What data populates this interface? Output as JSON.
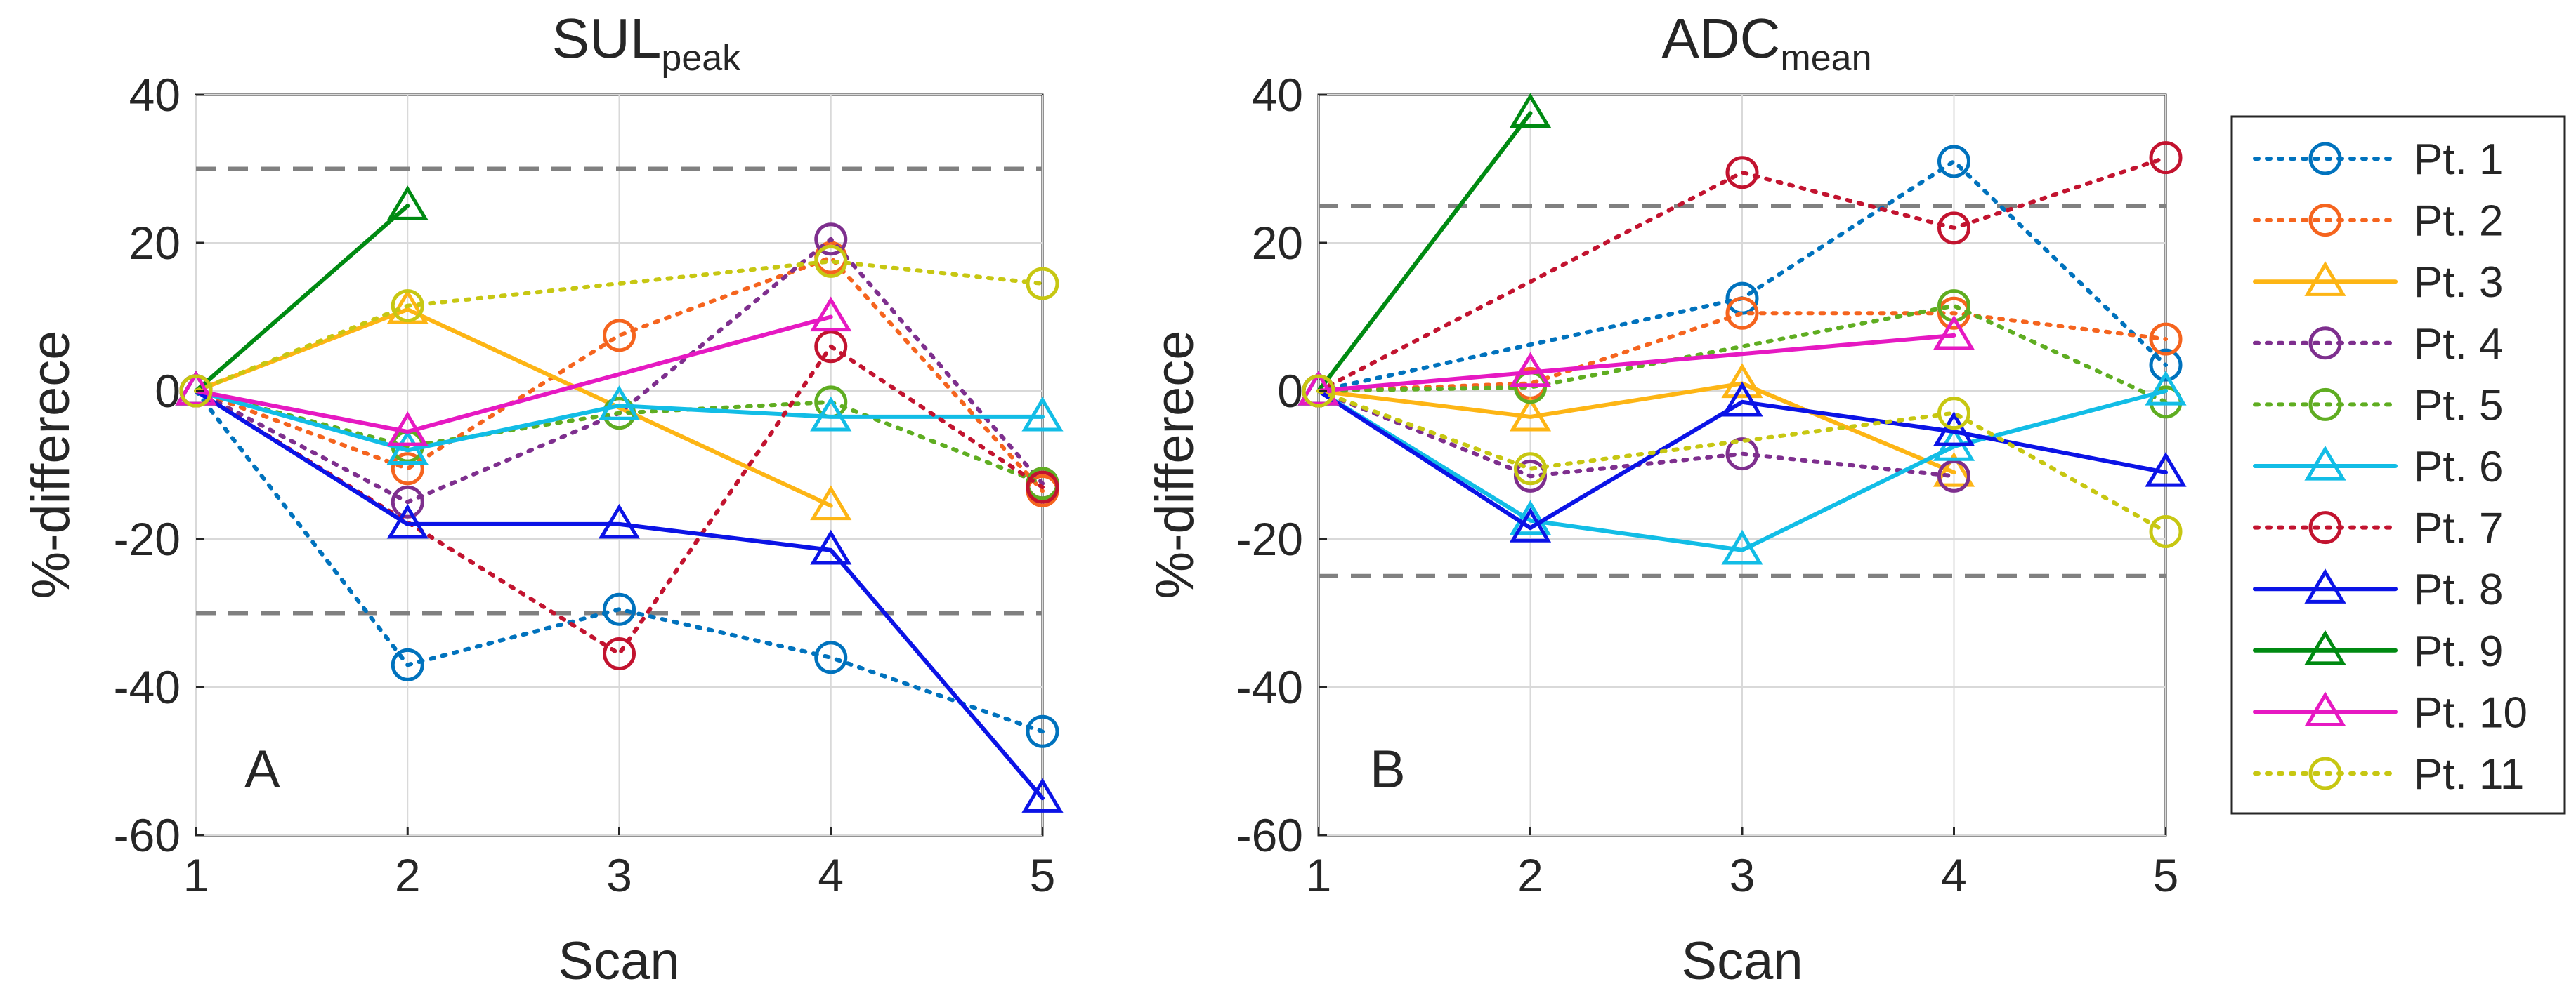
{
  "chart_data": [
    {
      "type": "line",
      "title": "SUL",
      "title_subscript": "peak",
      "panel_label": "A",
      "xlabel": "Scan",
      "ylabel": "%-differece",
      "x": [
        1,
        2,
        3,
        4,
        5
      ],
      "xlim": [
        1,
        5
      ],
      "ylim": [
        -60,
        40
      ],
      "xticks": [
        "1",
        "2",
        "3",
        "4",
        "5"
      ],
      "yticks": [
        "-60",
        "-40",
        "-20",
        "0",
        "20",
        "40"
      ],
      "ytick_values": [
        -60,
        -40,
        -20,
        0,
        20,
        40
      ],
      "grid": true,
      "reference_lines": [
        30,
        -30
      ],
      "series": [
        {
          "name": "Pt. 1",
          "values": [
            0,
            -37,
            -29.5,
            -36,
            -46
          ]
        },
        {
          "name": "Pt. 2",
          "values": [
            0,
            -10.5,
            7.5,
            18,
            -13.5
          ]
        },
        {
          "name": "Pt. 3",
          "values": [
            0,
            11,
            null,
            -15.5,
            null
          ]
        },
        {
          "name": "Pt. 4",
          "values": [
            0,
            -15,
            -3,
            20.5,
            -12.5
          ]
        },
        {
          "name": "Pt. 5",
          "values": [
            0,
            -7.5,
            -3,
            -1.5,
            -12.5
          ]
        },
        {
          "name": "Pt. 6",
          "values": [
            0,
            -8,
            -2,
            -3.5,
            -3.5
          ]
        },
        {
          "name": "Pt. 7",
          "values": [
            0,
            null,
            -35.5,
            6,
            -13
          ]
        },
        {
          "name": "Pt. 8",
          "values": [
            0,
            -18,
            -18,
            -21.5,
            -55
          ]
        },
        {
          "name": "Pt. 9",
          "values": [
            0,
            25,
            null,
            null,
            null
          ]
        },
        {
          "name": "Pt. 10",
          "values": [
            0,
            -5.5,
            null,
            10,
            null
          ]
        },
        {
          "name": "Pt. 11",
          "values": [
            0,
            11.5,
            null,
            17.5,
            14.5
          ]
        }
      ]
    },
    {
      "type": "line",
      "title": "ADC",
      "title_subscript": "mean",
      "panel_label": "B",
      "xlabel": "Scan",
      "ylabel": "%-differece",
      "x": [
        1,
        2,
        3,
        4,
        5
      ],
      "xlim": [
        1,
        5
      ],
      "ylim": [
        -60,
        40
      ],
      "xticks": [
        "1",
        "2",
        "3",
        "4",
        "5"
      ],
      "yticks": [
        "-60",
        "-40",
        "-20",
        "0",
        "20",
        "40"
      ],
      "ytick_values": [
        -60,
        -40,
        -20,
        0,
        20,
        40
      ],
      "grid": true,
      "reference_lines": [
        25,
        -25
      ],
      "series": [
        {
          "name": "Pt. 1",
          "values": [
            0,
            null,
            12.5,
            31,
            3.5
          ]
        },
        {
          "name": "Pt. 2",
          "values": [
            0,
            1,
            10.5,
            10.5,
            7
          ]
        },
        {
          "name": "Pt. 3",
          "values": [
            0,
            -3.5,
            1,
            -11,
            null
          ]
        },
        {
          "name": "Pt. 4",
          "values": [
            0,
            -11.5,
            -8.5,
            -11.5,
            null
          ]
        },
        {
          "name": "Pt. 5",
          "values": [
            0,
            0.5,
            null,
            11.5,
            -1.5
          ]
        },
        {
          "name": "Pt. 6",
          "values": [
            0,
            -17.5,
            -21.5,
            -7.5,
            0
          ]
        },
        {
          "name": "Pt. 7",
          "values": [
            0,
            null,
            29.5,
            22,
            31.5
          ]
        },
        {
          "name": "Pt. 8",
          "values": [
            0,
            -18.5,
            -1.5,
            -5.5,
            -11
          ]
        },
        {
          "name": "Pt. 9",
          "values": [
            0,
            37.5,
            null,
            null,
            null
          ]
        },
        {
          "name": "Pt. 10",
          "values": [
            0,
            2.5,
            null,
            7.5,
            null
          ]
        },
        {
          "name": "Pt. 11",
          "values": [
            0,
            -10.5,
            null,
            -3,
            -19
          ]
        }
      ]
    }
  ],
  "legend": {
    "placement": "right",
    "entries": [
      {
        "label": "Pt. 1",
        "color": "#0072bd",
        "marker": "circle",
        "line": "dotted"
      },
      {
        "label": "Pt. 2",
        "color": "#f5641e",
        "marker": "circle",
        "line": "dotted"
      },
      {
        "label": "Pt. 3",
        "color": "#fdb515",
        "marker": "triangle",
        "line": "solid"
      },
      {
        "label": "Pt. 4",
        "color": "#7e2f8e",
        "marker": "circle",
        "line": "dotted"
      },
      {
        "label": "Pt. 5",
        "color": "#5fad21",
        "marker": "circle",
        "line": "dotted"
      },
      {
        "label": "Pt. 6",
        "color": "#12bde6",
        "marker": "triangle",
        "line": "solid"
      },
      {
        "label": "Pt. 7",
        "color": "#c2132f",
        "marker": "circle",
        "line": "dotted"
      },
      {
        "label": "Pt. 8",
        "color": "#0b13e6",
        "marker": "triangle",
        "line": "solid"
      },
      {
        "label": "Pt. 9",
        "color": "#008a12",
        "marker": "triangle",
        "line": "solid"
      },
      {
        "label": "Pt. 10",
        "color": "#e619c2",
        "marker": "triangle",
        "line": "solid"
      },
      {
        "label": "Pt. 11",
        "color": "#c7c712",
        "marker": "circle",
        "line": "dotted"
      }
    ]
  }
}
